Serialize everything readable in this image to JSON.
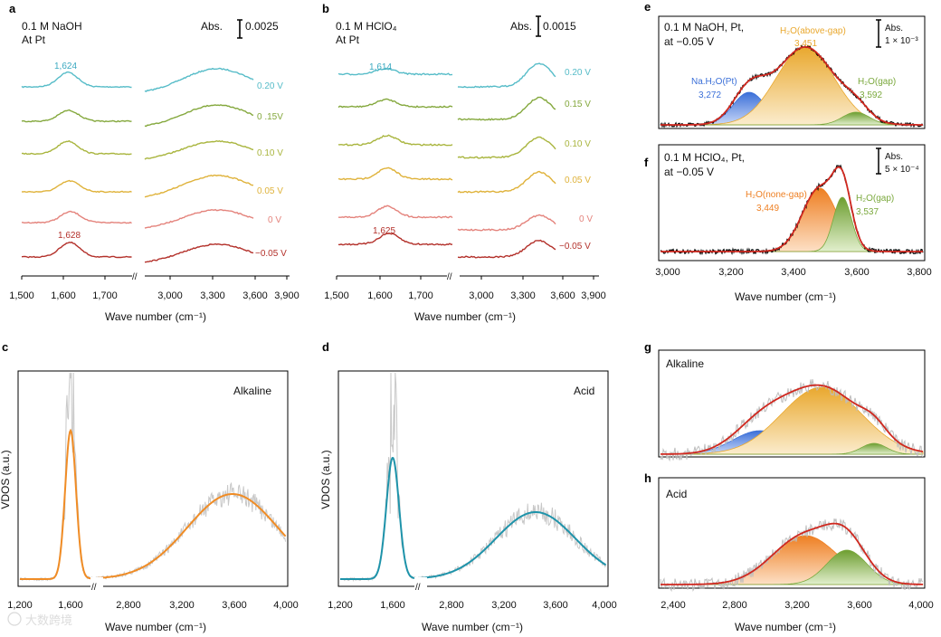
{
  "chart_data": [
    {
      "panel": "a",
      "type": "line",
      "title_lines": [
        "0.1 M NaOH",
        "At Pt"
      ],
      "scale_bar": {
        "label": "Abs.",
        "value": "0.0025"
      },
      "xlabel": "Wave number (cm⁻¹)",
      "x_ticks": [
        "1,500",
        "1,600",
        "1,700",
        "3,000",
        "3,300",
        "3,600",
        "3,900"
      ],
      "series": [
        {
          "name": "0.20 V",
          "color": "#56bcc8"
        },
        {
          "name": "0 .15V",
          "color": "#84a83d"
        },
        {
          "name": "0.10 V",
          "color": "#a9b53e"
        },
        {
          "name": "0.05 V",
          "color": "#dfb23a"
        },
        {
          "name": "0 V",
          "color": "#e4837c"
        },
        {
          "name": "−0.05 V",
          "color": "#b3302a"
        }
      ],
      "annotations": [
        {
          "text": "1,624",
          "color": "#3ba9c0"
        },
        {
          "text": "1,628",
          "color": "#b3302a"
        }
      ]
    },
    {
      "panel": "b",
      "type": "line",
      "title_lines": [
        "0.1 M HClO₄",
        "At Pt"
      ],
      "scale_bar": {
        "label": "Abs.",
        "value": "0.0015"
      },
      "xlabel": "Wave number (cm⁻¹)",
      "x_ticks": [
        "1,500",
        "1,600",
        "1,700",
        "3,000",
        "3,300",
        "3,600",
        "3,900"
      ],
      "series": [
        {
          "name": "0.20 V",
          "color": "#56bcc8"
        },
        {
          "name": "0.15 V",
          "color": "#84a83d"
        },
        {
          "name": "0.10 V",
          "color": "#a9b53e"
        },
        {
          "name": "0.05 V",
          "color": "#dfb23a"
        },
        {
          "name": "0 V",
          "color": "#e4837c"
        },
        {
          "name": "−0.05 V",
          "color": "#b3302a"
        }
      ],
      "annotations": [
        {
          "text": "1,614",
          "color": "#3ba9c0"
        },
        {
          "text": "1,625",
          "color": "#b3302a"
        }
      ]
    },
    {
      "panel": "c",
      "type": "line",
      "label": "Alkaline",
      "ylabel": "VDOS (a.u.)",
      "xlabel": "Wave number (cm⁻¹)",
      "x_ticks": [
        "1,200",
        "1,600",
        "2,800",
        "3,200",
        "3,600",
        "4,000"
      ],
      "fit_color": "#f08c25"
    },
    {
      "panel": "d",
      "type": "line",
      "label": "Acid",
      "ylabel": "VDOS (a.u.)",
      "xlabel": "Wave number (cm⁻¹)",
      "x_ticks": [
        "1,200",
        "1,600",
        "2,800",
        "3,200",
        "3,600",
        "4,000"
      ],
      "fit_color": "#1e93aa"
    },
    {
      "panel": "e",
      "type": "area",
      "title_lines": [
        "0.1 M NaOH, Pt,",
        "at −0.05 V"
      ],
      "scale_bar": {
        "label": "Abs.",
        "value": "1 × 10⁻³"
      },
      "xlim": [
        3000,
        3800
      ],
      "components": [
        {
          "name": "Na.H₂O(Pt)",
          "center": 3272,
          "label": "3,272",
          "color": "#3a6fd8"
        },
        {
          "name": "H₂O(above-gap)",
          "center": 3451,
          "label": "3,451",
          "color": "#e9a82e"
        },
        {
          "name": "H₂O(gap)",
          "center": 3592,
          "label": "3,592",
          "color": "#7aa83c"
        }
      ]
    },
    {
      "panel": "f",
      "type": "area",
      "title_lines": [
        "0.1 M HClO₄, Pt,",
        "at −0.05 V"
      ],
      "scale_bar": {
        "label": "Abs.",
        "value": "5 × 10⁻⁴"
      },
      "xlim": [
        3000,
        3800
      ],
      "x_ticks": [
        "3,000",
        "3,200",
        "3,400",
        "3,600",
        "3,800"
      ],
      "xlabel": "Wave number (cm⁻¹)",
      "components": [
        {
          "name": "H₂O(none-gap)",
          "center": 3449,
          "label": "3,449",
          "color": "#ee7f22"
        },
        {
          "name": "H₂O(gap)",
          "center": 3537,
          "label": "3,537",
          "color": "#7aa83c"
        }
      ]
    },
    {
      "panel": "g",
      "type": "area",
      "label": "Alkaline"
    },
    {
      "panel": "h",
      "type": "area",
      "label": "Acid",
      "xlim": [
        2400,
        4000
      ],
      "x_ticks": [
        "2,400",
        "2,800",
        "3,200",
        "3,600",
        "4,000"
      ],
      "xlabel": "Wave number (cm⁻¹)"
    }
  ],
  "watermark_text": "大数跨境"
}
